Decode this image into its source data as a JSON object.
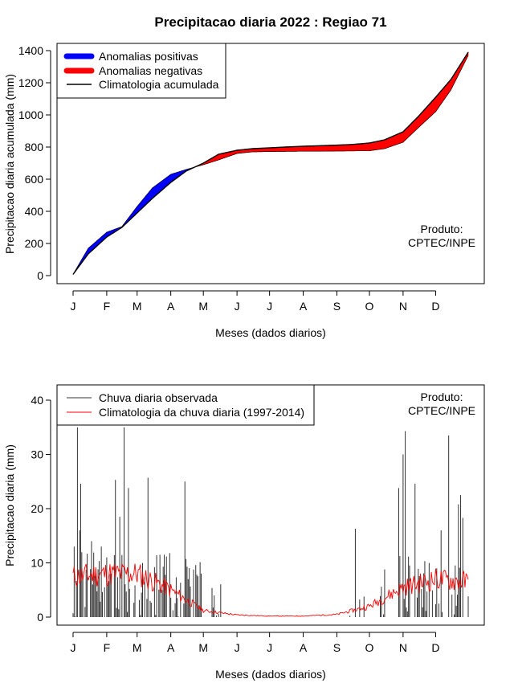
{
  "title": "Precipitacao diaria 2022 : Regiao 71",
  "colors": {
    "positive": "#0000ff",
    "negative": "#ff0000",
    "climatology_line": "#000000",
    "observed_bars": "#333333",
    "climatology_daily": "#ff0000"
  },
  "month_labels": [
    "J",
    "F",
    "M",
    "A",
    "M",
    "J",
    "J",
    "A",
    "S",
    "O",
    "N",
    "D"
  ],
  "chart_data": [
    {
      "type": "area",
      "title": "Precipitacao diaria 2022 : Regiao 71",
      "xlabel": "Meses (dados diarios)",
      "ylabel": "Precipitacao diaria acumulada (mm)",
      "ylim": [
        0,
        1400
      ],
      "yticks": [
        0,
        200,
        400,
        600,
        800,
        1000,
        1200,
        1400
      ],
      "xticks": [
        "J",
        "F",
        "M",
        "A",
        "M",
        "J",
        "J",
        "A",
        "S",
        "O",
        "N",
        "D"
      ],
      "legend": [
        "Anomalias positivas",
        "Anomalias negativas",
        "Climatologia acumulada"
      ],
      "legend_position": "top-left",
      "annotation": [
        "Produto:",
        "CPTEC/INPE"
      ],
      "x_day": [
        1,
        15,
        32,
        46,
        60,
        74,
        91,
        105,
        121,
        135,
        152,
        166,
        182,
        196,
        213,
        227,
        244,
        258,
        274,
        288,
        305,
        319,
        335,
        349,
        365
      ],
      "climatology_cumulative": [
        8,
        135,
        240,
        300,
        390,
        480,
        580,
        650,
        700,
        755,
        780,
        790,
        795,
        800,
        805,
        808,
        812,
        816,
        825,
        845,
        895,
        990,
        1110,
        1220,
        1390
      ],
      "observed_cumulative": [
        8,
        170,
        270,
        305,
        430,
        545,
        630,
        660,
        690,
        720,
        760,
        770,
        772,
        773,
        774,
        774,
        775,
        776,
        777,
        790,
        830,
        920,
        1020,
        1155,
        1370
      ]
    },
    {
      "type": "bar",
      "xlabel": "Meses (dados diarios)",
      "ylabel": "Precipitacao diaria (mm)",
      "ylim": [
        0,
        40
      ],
      "yticks": [
        0,
        10,
        20,
        30,
        40
      ],
      "xticks": [
        "J",
        "F",
        "M",
        "A",
        "M",
        "J",
        "J",
        "A",
        "S",
        "O",
        "N",
        "D"
      ],
      "legend": [
        "Chuva diaria observada",
        "Climatologia da chuva diaria (1997-2014)"
      ],
      "legend_position": "top-left",
      "annotation": [
        "Produto:",
        "CPTEC/INPE"
      ],
      "observed_peaks": [
        {
          "day": 2,
          "value": 13
        },
        {
          "day": 5,
          "value": 35
        },
        {
          "day": 7,
          "value": 16
        },
        {
          "day": 8,
          "value": 24.6
        },
        {
          "day": 18,
          "value": 14
        },
        {
          "day": 27,
          "value": 13
        },
        {
          "day": 40,
          "value": 25.3
        },
        {
          "day": 44,
          "value": 18.5
        },
        {
          "day": 48,
          "value": 35
        },
        {
          "day": 52,
          "value": 23.8
        },
        {
          "day": 70,
          "value": 25.7
        },
        {
          "day": 81,
          "value": 11.5
        },
        {
          "day": 104,
          "value": 25
        },
        {
          "day": 107,
          "value": 7
        },
        {
          "day": 131,
          "value": 4
        },
        {
          "day": 261,
          "value": 16.3
        },
        {
          "day": 285,
          "value": 5.6
        },
        {
          "day": 301,
          "value": 23.8
        },
        {
          "day": 305,
          "value": 30
        },
        {
          "day": 307,
          "value": 34.3
        },
        {
          "day": 316,
          "value": 24.6
        },
        {
          "day": 340,
          "value": 16
        },
        {
          "day": 347,
          "value": 33.5
        },
        {
          "day": 356,
          "value": 20.8
        },
        {
          "day": 358,
          "value": 22.5
        },
        {
          "day": 360,
          "value": 18.3
        }
      ],
      "climatology_daily_anchor_days": [
        1,
        32,
        60,
        91,
        121,
        152,
        182,
        213,
        244,
        274,
        305,
        335,
        365
      ],
      "climatology_daily_anchor_values": [
        7.5,
        8,
        8,
        5,
        1.2,
        0.4,
        0.2,
        0.2,
        0.5,
        2,
        5.5,
        7,
        6.5
      ]
    }
  ]
}
